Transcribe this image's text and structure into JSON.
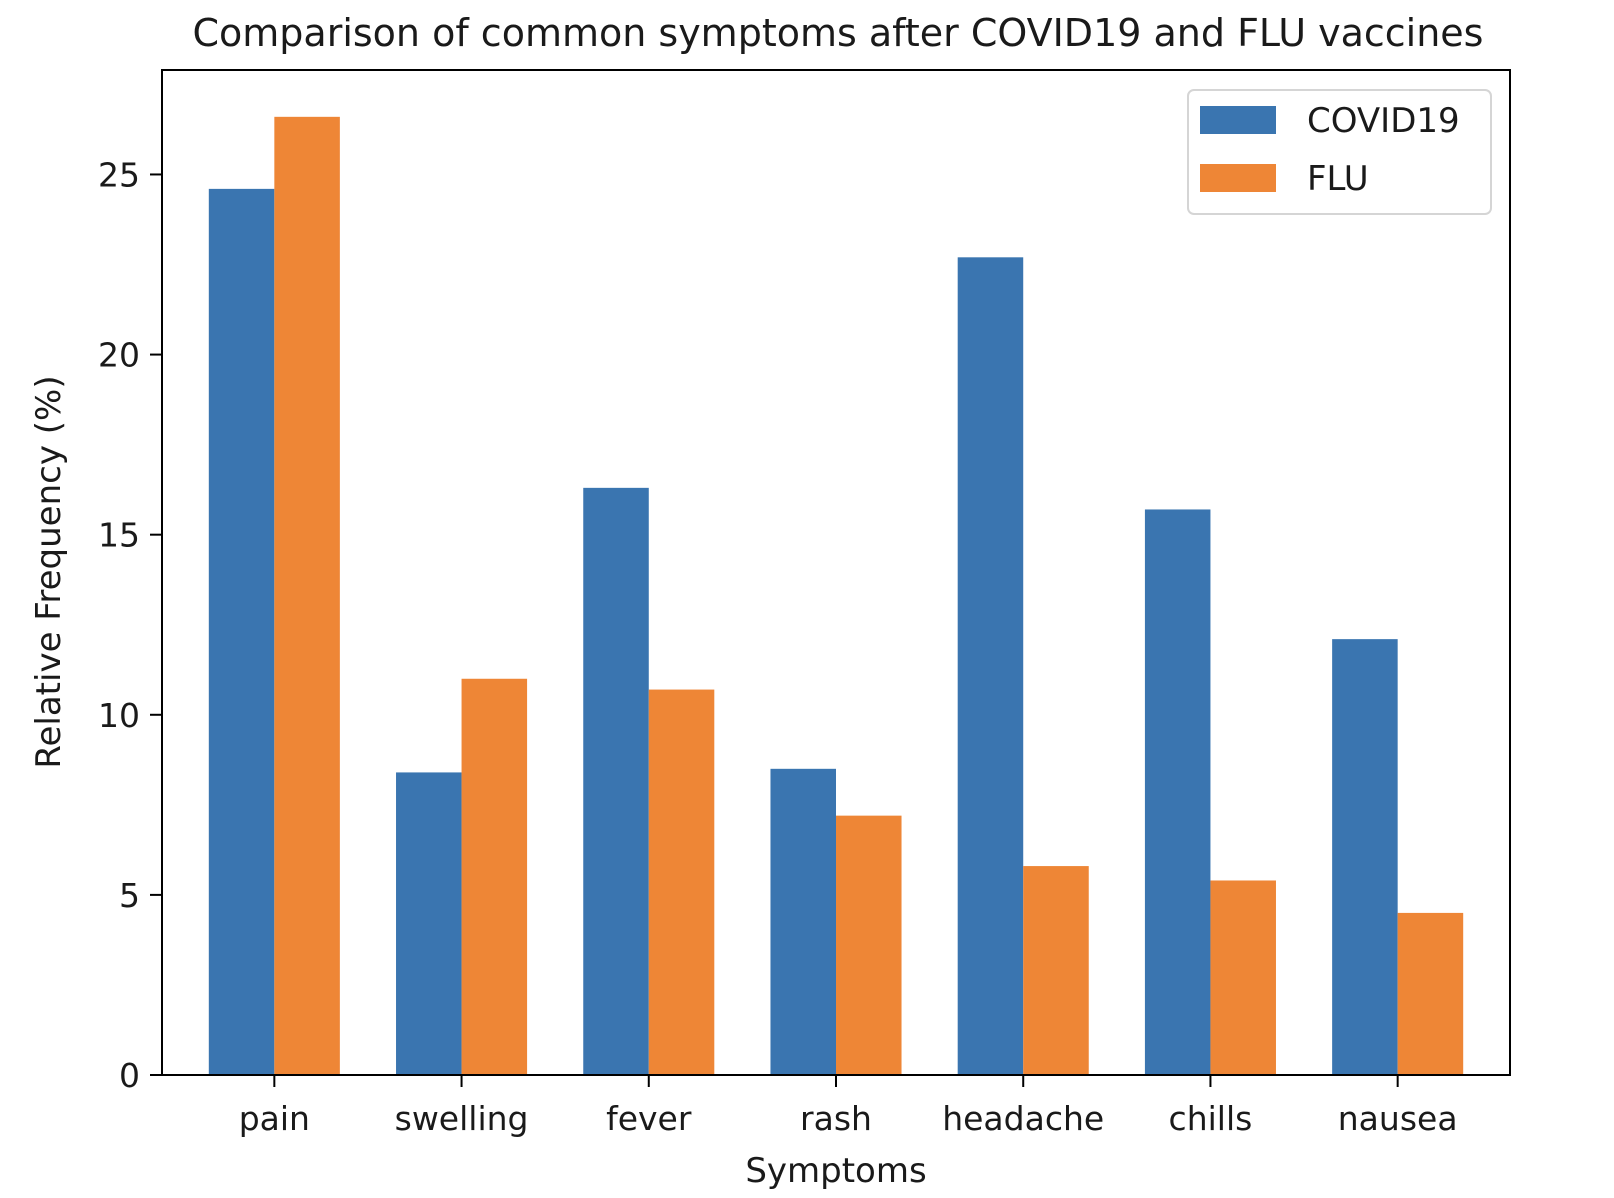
{
  "chart_data": {
    "type": "bar",
    "title": "Comparison of common symptoms after COVID19 and FLU vaccines",
    "xlabel": "Symptoms",
    "ylabel": "Relative Frequency (%)",
    "categories": [
      "pain",
      "swelling",
      "fever",
      "rash",
      "headache",
      "chills",
      "nausea"
    ],
    "series": [
      {
        "name": "COVID19",
        "color": "#3a75b0",
        "values": [
          24.6,
          8.4,
          16.3,
          8.5,
          22.7,
          15.7,
          12.1
        ]
      },
      {
        "name": "FLU",
        "color": "#ee8636",
        "values": [
          26.6,
          11.0,
          10.7,
          7.2,
          5.8,
          5.4,
          4.5
        ]
      }
    ],
    "ylim": [
      0,
      27.9
    ],
    "yticks": [
      0,
      5,
      10,
      15,
      20,
      25
    ],
    "grid": false,
    "legend_position": "top-right"
  }
}
